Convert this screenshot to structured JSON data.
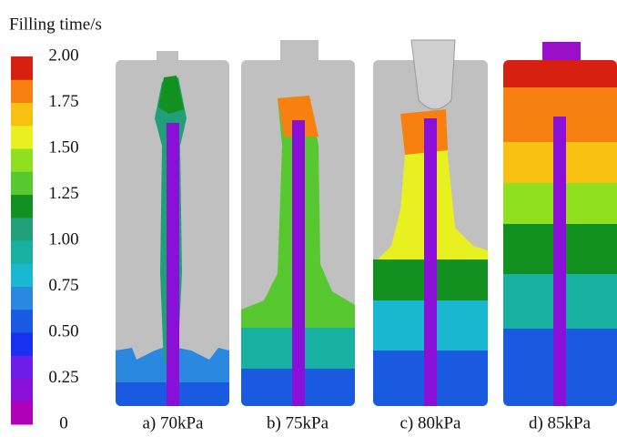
{
  "colorbar": {
    "title": "Filling time/s",
    "ticks": [
      {
        "value": 2,
        "label": "2.00"
      },
      {
        "value": 1.75,
        "label": "1.75"
      },
      {
        "value": 1.5,
        "label": "1.50"
      },
      {
        "value": 1.25,
        "label": "1.25"
      },
      {
        "value": 1,
        "label": "1.00"
      },
      {
        "value": 0.75,
        "label": "0.75"
      },
      {
        "value": 0.5,
        "label": "0.50"
      },
      {
        "value": 0.25,
        "label": "0.25"
      },
      0
    ],
    "colors": [
      "#b000b8",
      "#8a10d8",
      "#6a1ee8",
      "#1830f0",
      "#1a5ae0",
      "#2a88e0",
      "#1ab8d0",
      "#18b0a0",
      "#20a078",
      "#129020",
      "#58c830",
      "#90e020",
      "#e8f020",
      "#f8c010",
      "#f88010",
      "#d82010"
    ]
  },
  "panels": [
    {
      "caption": "a) 70kPa"
    },
    {
      "caption": "b) 75kPa"
    },
    {
      "caption": "c) 80kPa"
    },
    {
      "caption": "d) 85kPa"
    }
  ]
}
